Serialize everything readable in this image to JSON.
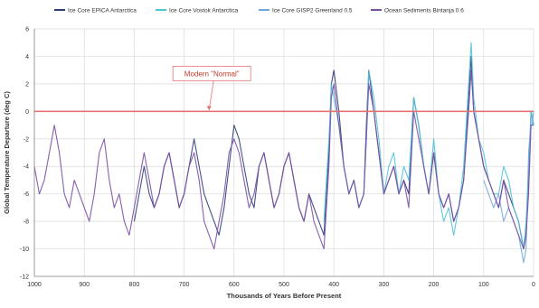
{
  "chart_data": {
    "type": "line",
    "xlabel": "Thousands of Years Before Present",
    "ylabel": "Global Temperature Departure (deg C)",
    "xlim": [
      1000,
      0
    ],
    "ylim": [
      -12,
      6
    ],
    "x_ticks": [
      1000,
      900,
      800,
      700,
      600,
      500,
      400,
      300,
      200,
      100,
      0
    ],
    "y_ticks": [
      -12,
      -10,
      -8,
      -6,
      -4,
      -2,
      0,
      2,
      4,
      6
    ],
    "grid": true,
    "legend_position": "top",
    "reference_line": {
      "y": 0,
      "color": "#e57373"
    },
    "annotation": {
      "text": "Modern \"Normal\"",
      "x": 650,
      "y": 0
    },
    "series": [
      {
        "name": "Ice Core EPICA Antarctica",
        "color": "#2c3e7a",
        "x": [
          800,
          790,
          780,
          770,
          760,
          750,
          740,
          730,
          720,
          710,
          700,
          690,
          680,
          670,
          660,
          650,
          640,
          630,
          620,
          610,
          600,
          590,
          580,
          570,
          560,
          550,
          540,
          530,
          520,
          510,
          500,
          490,
          480,
          470,
          460,
          450,
          440,
          430,
          420,
          410,
          405,
          400,
          390,
          380,
          370,
          360,
          350,
          340,
          335,
          330,
          320,
          310,
          300,
          290,
          280,
          270,
          260,
          250,
          240,
          230,
          220,
          210,
          200,
          190,
          180,
          170,
          160,
          150,
          140,
          130,
          125,
          120,
          110,
          100,
          90,
          80,
          70,
          60,
          50,
          40,
          30,
          20,
          15,
          10,
          5,
          0
        ],
        "y": [
          -8,
          -6,
          -4,
          -6,
          -7,
          -6,
          -4,
          -3,
          -5,
          -7,
          -6,
          -4,
          -2,
          -4,
          -6,
          -7,
          -8,
          -9,
          -7,
          -4,
          -1,
          -2,
          -4,
          -6,
          -7,
          -4,
          -3,
          -5,
          -7,
          -6,
          -4,
          -3,
          -5,
          -7,
          -8,
          -6,
          -7,
          -8,
          -9,
          -3,
          2,
          3,
          0,
          -4,
          -6,
          -5,
          -7,
          -6,
          -1,
          3,
          0,
          -3,
          -6,
          -5,
          -4,
          -6,
          -5,
          -6,
          1,
          -1,
          -4,
          -6,
          -3,
          -6,
          -7,
          -6,
          -8,
          -7,
          -5,
          1,
          4,
          0,
          -2,
          -4,
          -5,
          -6,
          -7,
          -5,
          -6,
          -7,
          -8,
          -10,
          -9,
          -5,
          0,
          -1
        ]
      },
      {
        "name": "Ice Core Vostok Antarctica",
        "color": "#4fc3d6",
        "x": [
          420,
          410,
          405,
          400,
          390,
          380,
          370,
          360,
          350,
          340,
          335,
          330,
          320,
          310,
          300,
          290,
          280,
          270,
          260,
          250,
          240,
          230,
          220,
          210,
          200,
          190,
          180,
          170,
          160,
          150,
          140,
          130,
          125,
          120,
          110,
          100,
          90,
          80,
          70,
          60,
          50,
          40,
          30,
          20,
          15,
          10,
          5,
          0
        ],
        "y": [
          -8,
          -2,
          2,
          1,
          -1,
          -4,
          -6,
          -5,
          -7,
          -6,
          -2,
          3,
          1,
          -2,
          -6,
          -4,
          -3,
          -6,
          -4,
          -5,
          1,
          -1,
          -4,
          -6,
          -2,
          -6,
          -8,
          -7,
          -9,
          -7,
          -4,
          2,
          5,
          1,
          -2,
          -3,
          -5,
          -6,
          -6,
          -4,
          -5,
          -7,
          -8,
          -10,
          -8,
          -4,
          0,
          -1
        ]
      },
      {
        "name": "Ice Core GISP2 Greenland 0.5",
        "color": "#6fa8dc",
        "x": [
          100,
          90,
          80,
          70,
          60,
          50,
          40,
          30,
          25,
          20,
          15,
          12,
          10,
          8,
          5,
          3,
          0
        ],
        "y": [
          -5,
          -6,
          -7,
          -6,
          -8,
          -7,
          -8,
          -9,
          -10,
          -11,
          -10,
          -6,
          -3,
          -2,
          -1,
          -1,
          0
        ]
      },
      {
        "name": "Ocean Sediments Bintanja 0.6",
        "color": "#7b4fa6",
        "x": [
          1000,
          990,
          980,
          970,
          960,
          950,
          940,
          930,
          920,
          910,
          900,
          890,
          880,
          870,
          860,
          850,
          840,
          830,
          820,
          810,
          800,
          790,
          780,
          770,
          760,
          750,
          740,
          730,
          720,
          710,
          700,
          690,
          680,
          670,
          660,
          650,
          640,
          630,
          620,
          610,
          600,
          590,
          580,
          570,
          560,
          550,
          540,
          530,
          520,
          510,
          500,
          490,
          480,
          470,
          460,
          450,
          440,
          430,
          420,
          410,
          405,
          400,
          390,
          380,
          370,
          360,
          350,
          340,
          335,
          330,
          320,
          310,
          300,
          290,
          280,
          270,
          260,
          250,
          240,
          230,
          220,
          210,
          200,
          190,
          180,
          170,
          160,
          150,
          140,
          130,
          125,
          120,
          110,
          100,
          90,
          80,
          70,
          60,
          50,
          40,
          30,
          20,
          15,
          10,
          5,
          0
        ],
        "y": [
          -4,
          -6,
          -5,
          -3,
          -1,
          -3,
          -6,
          -7,
          -5,
          -6,
          -7,
          -8,
          -6,
          -3,
          -2,
          -5,
          -7,
          -6,
          -8,
          -9,
          -7,
          -5,
          -3,
          -5,
          -7,
          -6,
          -4,
          -3,
          -5,
          -7,
          -6,
          -4,
          -3,
          -5,
          -8,
          -9,
          -10,
          -8,
          -6,
          -3,
          -2,
          -3,
          -5,
          -7,
          -6,
          -4,
          -3,
          -5,
          -7,
          -6,
          -4,
          -3,
          -5,
          -7,
          -8,
          -6,
          -8,
          -9,
          -10,
          -4,
          1,
          2,
          -1,
          -4,
          -6,
          -5,
          -7,
          -6,
          -2,
          2,
          0,
          -3,
          -6,
          -5,
          -4,
          -6,
          -5,
          -7,
          0,
          -2,
          -4,
          -6,
          -3,
          -6,
          -7,
          -6,
          -8,
          -7,
          -5,
          0,
          3,
          0,
          -2,
          -4,
          -5,
          -6,
          -7,
          -5,
          -7,
          -8,
          -9,
          -10,
          -9,
          -6,
          -1,
          -1
        ]
      }
    ]
  }
}
